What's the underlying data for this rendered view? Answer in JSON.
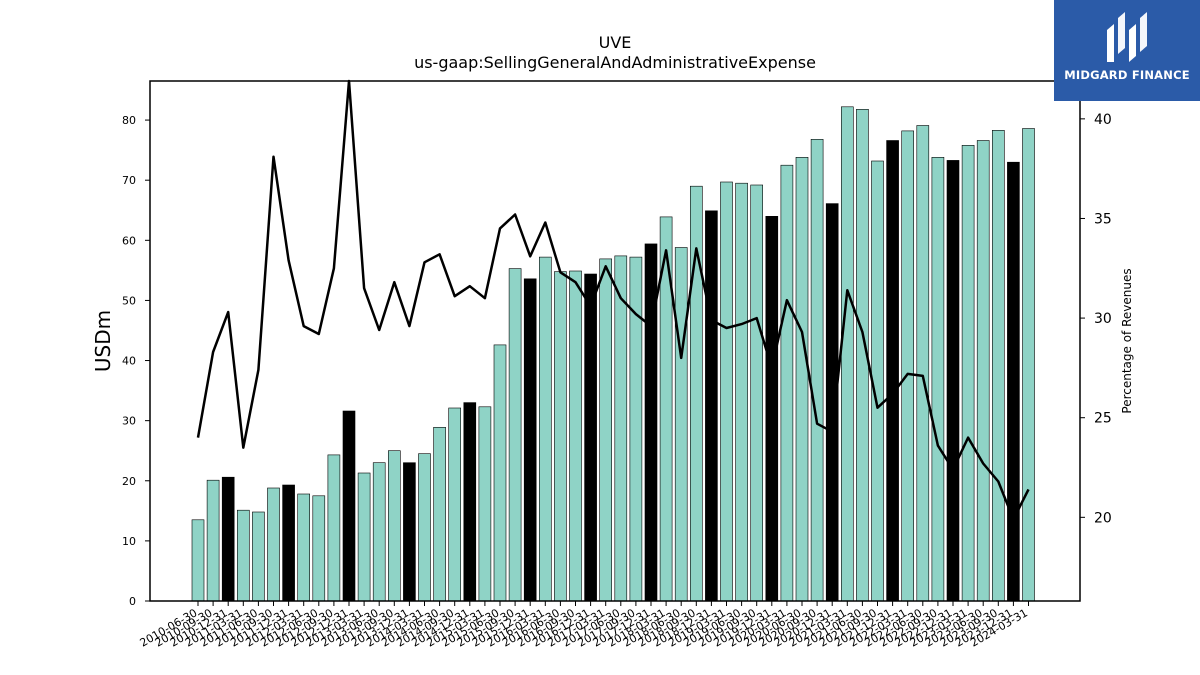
{
  "logo": {
    "text": "MIDGARD FINANCE",
    "bg_color": "#2b5ba8"
  },
  "chart_data": {
    "type": "bar",
    "title": "UVE",
    "subtitle": "us-gaap:SellingGeneralAndAdministrativeExpense",
    "ylabel": "USDm",
    "y2label": "Percentage of Revenues",
    "ylim": [
      0,
      86.5
    ],
    "y2lim": [
      15.8,
      41.9
    ],
    "yticks": [
      0,
      10,
      20,
      30,
      40,
      50,
      60,
      70,
      80
    ],
    "y2ticks": [
      20,
      25,
      30,
      35,
      40
    ],
    "colors": {
      "bar_quarter": "#8fd3c6",
      "bar_annual": "#000000",
      "line": "#000000"
    },
    "categories": [
      "2010-06-30",
      "2010-09-30",
      "2010-12-31",
      "2011-03-31",
      "2011-06-30",
      "2011-09-30",
      "2011-12-31",
      "2012-03-31",
      "2012-06-30",
      "2012-09-30",
      "2012-12-31",
      "2013-03-31",
      "2013-06-30",
      "2013-09-30",
      "2013-12-31",
      "2014-03-31",
      "2014-06-30",
      "2014-09-30",
      "2014-12-31",
      "2015-03-31",
      "2015-06-30",
      "2015-09-30",
      "2015-12-31",
      "2016-03-31",
      "2016-06-30",
      "2016-09-30",
      "2016-12-31",
      "2017-03-31",
      "2017-06-30",
      "2017-09-30",
      "2017-12-31",
      "2018-03-31",
      "2018-06-30",
      "2018-09-30",
      "2018-12-31",
      "2019-03-31",
      "2019-06-30",
      "2019-09-30",
      "2019-12-31",
      "2020-03-31",
      "2020-06-30",
      "2020-09-30",
      "2020-12-31",
      "2021-03-31",
      "2021-06-30",
      "2021-09-30",
      "2021-12-31",
      "2022-03-31",
      "2022-06-30",
      "2022-09-30",
      "2022-12-31",
      "2023-03-31",
      "2023-06-30",
      "2023-09-30",
      "2023-12-31",
      "2024-03-31"
    ],
    "x_tick_labels": [
      "2010-06-30",
      "2010-09-30",
      "2010-12-31",
      "2011-03-31",
      "2011-06-30",
      "2011-09-30",
      "2011-12-31",
      "2012-03-31",
      "2012-06-30",
      "2012-09-30",
      "2012-12-31",
      "2013-03-31",
      "2013-06-30",
      "2013-09-30",
      "2013-12-31",
      "2014-03-31",
      "2014-06-30",
      "2014-09-30",
      "2014-12-31",
      "2015-03-31",
      "2015-06-30",
      "2015-09-30",
      "2015-12-31",
      "2016-03-31",
      "2016-06-30",
      "2016-09-30",
      "2016-12-31",
      "2017-03-31",
      "2017-06-30",
      "2017-09-30",
      "2017-12-31",
      "2018-03-31",
      "2018-06-30",
      "2018-09-30",
      "2018-12-31",
      "2019-03-31",
      "2019-06-30",
      "2019-09-30",
      "2019-12-31",
      "2020-03-31",
      "2020-06-30",
      "2020-09-30",
      "2020-12-31",
      "2021-03-31",
      "2021-06-30",
      "2021-09-30",
      "2021-12-31",
      "2022-03-31",
      "2022-06-30",
      "2022-09-30",
      "2022-12-31",
      "2023-03-31",
      "2023-06-30",
      "2023-09-30",
      "2023-12-31",
      "2024-03-31"
    ],
    "bar_values": [
      13.5,
      20.1,
      20.6,
      15.1,
      14.8,
      18.8,
      19.3,
      17.8,
      17.5,
      24.3,
      31.6,
      21.3,
      23.0,
      25.0,
      23.0,
      24.5,
      28.9,
      32.1,
      33.0,
      32.3,
      42.6,
      55.3,
      53.6,
      57.2,
      54.8,
      54.9,
      54.4,
      56.9,
      57.4,
      57.2,
      59.4,
      63.9,
      58.8,
      69.0,
      64.9,
      69.7,
      69.5,
      69.2,
      64.0,
      72.5,
      73.8,
      76.8,
      66.1,
      82.2,
      81.8,
      73.2,
      76.6,
      78.2,
      79.1,
      73.8,
      73.3,
      75.8,
      76.6,
      78.3,
      73.0,
      78.6
    ],
    "bar_annual_flags": [
      false,
      false,
      true,
      false,
      false,
      false,
      true,
      false,
      false,
      false,
      true,
      false,
      false,
      false,
      true,
      false,
      false,
      false,
      true,
      false,
      false,
      false,
      true,
      false,
      false,
      false,
      true,
      false,
      false,
      false,
      true,
      false,
      false,
      false,
      true,
      false,
      false,
      false,
      true,
      false,
      false,
      false,
      true,
      false,
      false,
      false,
      true,
      false,
      false,
      false,
      true,
      false,
      false,
      false,
      true,
      false
    ],
    "line_values": [
      24.0,
      28.3,
      30.3,
      23.5,
      27.4,
      38.1,
      32.9,
      29.6,
      29.2,
      32.5,
      41.9,
      31.5,
      29.4,
      31.8,
      29.6,
      32.8,
      33.2,
      31.1,
      31.6,
      31.0,
      34.5,
      35.2,
      33.1,
      34.8,
      32.3,
      31.8,
      30.6,
      32.6,
      31.0,
      30.2,
      29.6,
      33.4,
      28.0,
      33.5,
      29.9,
      29.5,
      29.7,
      30.0,
      27.5,
      30.9,
      29.3,
      24.7,
      24.3,
      31.4,
      29.3,
      25.5,
      26.2,
      27.2,
      27.1,
      23.6,
      22.4,
      24.0,
      22.7,
      21.8,
      19.9,
      21.4
    ]
  }
}
